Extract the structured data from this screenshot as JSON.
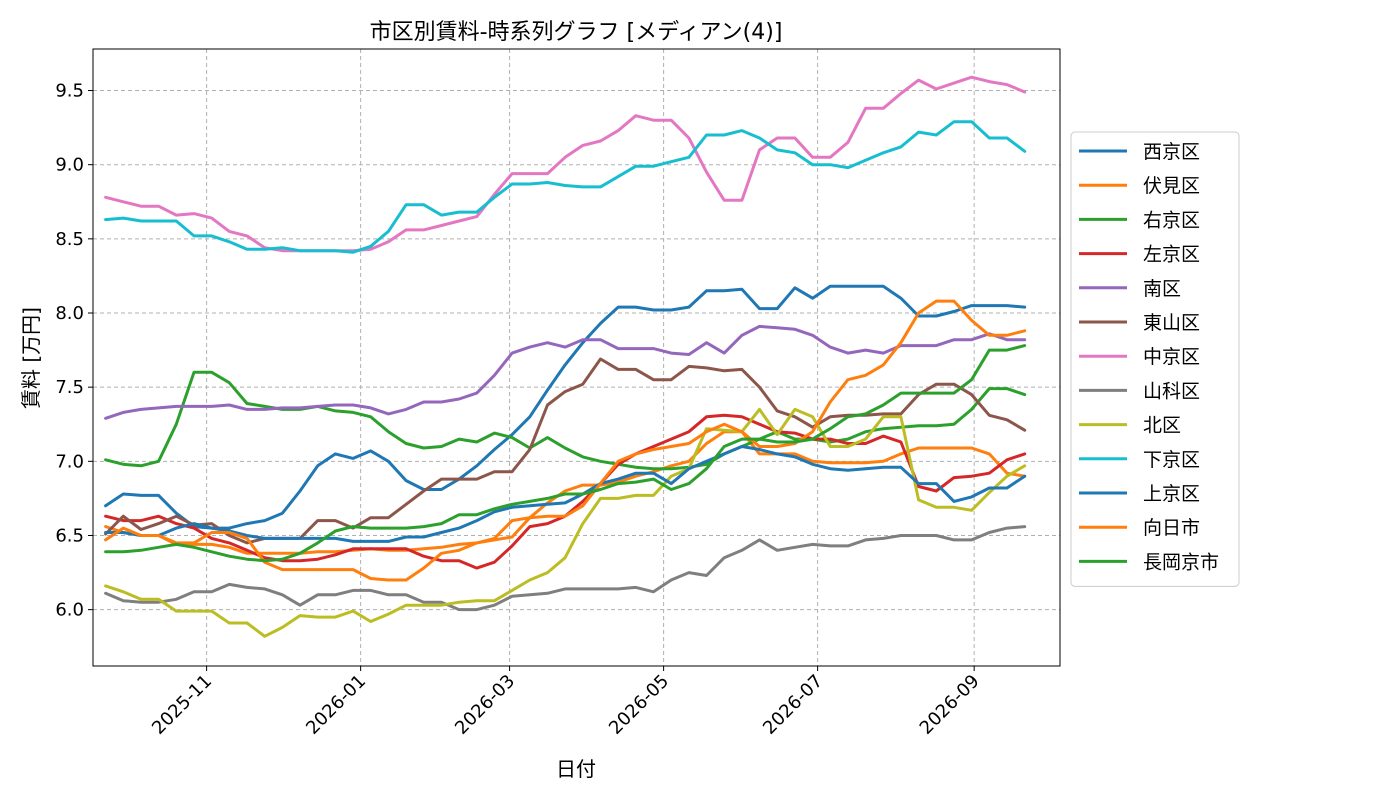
{
  "chart_data": {
    "type": "line",
    "title": "市区別賃料-時系列グラフ [メディアン(4)]",
    "xlabel": "日付",
    "ylabel": "賃料 [万円]",
    "ylim": [
      5.62,
      9.78
    ],
    "xlim": [
      "2025-09-17",
      "2026-10-05"
    ],
    "yticks": [
      6.0,
      6.5,
      7.0,
      7.5,
      8.0,
      8.5,
      9.0,
      9.5
    ],
    "ytick_labels": [
      "6.0",
      "6.5",
      "7.0",
      "7.5",
      "8.0",
      "8.5",
      "9.0",
      "9.5"
    ],
    "xticks": [
      "2025-11-01",
      "2026-01-01",
      "2026-03-01",
      "2026-05-01",
      "2026-07-01",
      "2026-09-01"
    ],
    "xtick_labels": [
      "2025-11",
      "2026-01",
      "2026-03",
      "2026-05",
      "2026-07",
      "2026-09"
    ],
    "grid": true,
    "legend": "right",
    "dates": [
      "2025-09-22",
      "2025-09-29",
      "2025-10-06",
      "2025-10-13",
      "2025-10-20",
      "2025-10-27",
      "2025-11-03",
      "2025-11-10",
      "2025-11-17",
      "2025-11-24",
      "2025-12-01",
      "2025-12-08",
      "2025-12-15",
      "2025-12-22",
      "2025-12-29",
      "2026-01-05",
      "2026-01-12",
      "2026-01-19",
      "2026-01-26",
      "2026-02-02",
      "2026-02-09",
      "2026-02-16",
      "2026-02-23",
      "2026-03-02",
      "2026-03-09",
      "2026-03-16",
      "2026-03-23",
      "2026-03-30",
      "2026-04-06",
      "2026-04-13",
      "2026-04-20",
      "2026-04-27",
      "2026-05-04",
      "2026-05-11",
      "2026-05-18",
      "2026-05-25",
      "2026-06-01",
      "2026-06-08",
      "2026-06-15",
      "2026-06-22",
      "2026-06-29",
      "2026-07-06",
      "2026-07-13",
      "2026-07-20",
      "2026-07-27",
      "2026-08-03",
      "2026-08-10",
      "2026-08-17",
      "2026-08-24",
      "2026-08-31",
      "2026-09-07",
      "2026-09-14",
      "2026-09-21"
    ],
    "series": [
      {
        "name": "西京区",
        "color": "#1f77b4",
        "values": [
          6.7,
          6.78,
          6.77,
          6.77,
          6.65,
          6.56,
          6.55,
          6.55,
          6.58,
          6.6,
          6.65,
          6.8,
          6.97,
          7.05,
          7.02,
          7.07,
          7.0,
          6.87,
          6.81,
          6.81,
          6.88,
          6.97,
          7.08,
          7.18,
          7.3,
          7.48,
          7.65,
          7.8,
          7.93,
          8.04,
          8.04,
          8.02,
          8.02,
          8.04,
          8.15,
          8.15,
          8.16,
          8.03,
          8.03,
          8.17,
          8.1,
          8.18,
          8.18,
          8.18,
          8.18,
          8.1,
          7.98,
          7.98,
          8.01,
          8.05,
          8.05,
          8.05,
          8.04
        ]
      },
      {
        "name": "伏見区",
        "color": "#ff7f0e",
        "values": [
          6.56,
          6.52,
          6.5,
          6.5,
          6.44,
          6.44,
          6.44,
          6.42,
          6.38,
          6.38,
          6.38,
          6.38,
          6.39,
          6.39,
          6.4,
          6.41,
          6.4,
          6.4,
          6.41,
          6.42,
          6.44,
          6.45,
          6.47,
          6.49,
          6.62,
          6.72,
          6.8,
          6.84,
          6.84,
          6.86,
          6.9,
          6.93,
          6.97,
          7.0,
          7.12,
          7.2,
          7.2,
          7.05,
          7.05,
          7.05,
          7.0,
          6.99,
          6.99,
          6.99,
          7.0,
          7.05,
          7.09,
          7.09,
          7.09,
          7.09,
          7.05,
          6.92,
          6.9
        ]
      },
      {
        "name": "右京区",
        "color": "#2ca02c",
        "values": [
          7.01,
          6.98,
          6.97,
          7.0,
          7.25,
          7.6,
          7.6,
          7.53,
          7.39,
          7.37,
          7.35,
          7.35,
          7.37,
          7.34,
          7.33,
          7.3,
          7.2,
          7.12,
          7.09,
          7.1,
          7.15,
          7.13,
          7.19,
          7.16,
          7.09,
          7.16,
          7.09,
          7.03,
          7.0,
          6.98,
          6.96,
          6.95,
          6.95,
          6.96,
          6.98,
          7.05,
          7.1,
          7.15,
          7.2,
          7.15,
          7.15,
          7.13,
          7.15,
          7.2,
          7.22,
          7.23,
          7.24,
          7.24,
          7.25,
          7.35,
          7.49,
          7.49,
          7.45
        ]
      },
      {
        "name": "左京区",
        "color": "#d62728",
        "values": [
          6.63,
          6.6,
          6.6,
          6.63,
          6.58,
          6.55,
          6.48,
          6.45,
          6.4,
          6.35,
          6.33,
          6.33,
          6.34,
          6.37,
          6.41,
          6.41,
          6.41,
          6.41,
          6.36,
          6.33,
          6.33,
          6.28,
          6.32,
          6.43,
          6.56,
          6.58,
          6.63,
          6.73,
          6.85,
          6.98,
          7.05,
          7.1,
          7.15,
          7.2,
          7.3,
          7.31,
          7.3,
          7.25,
          7.2,
          7.19,
          7.15,
          7.15,
          7.12,
          7.12,
          7.17,
          7.13,
          6.83,
          6.8,
          6.89,
          6.9,
          6.92,
          7.01,
          7.05
        ]
      },
      {
        "name": "南区",
        "color": "#9467bd",
        "values": [
          7.29,
          7.33,
          7.35,
          7.36,
          7.37,
          7.37,
          7.37,
          7.38,
          7.35,
          7.35,
          7.36,
          7.36,
          7.37,
          7.38,
          7.38,
          7.36,
          7.32,
          7.35,
          7.4,
          7.4,
          7.42,
          7.46,
          7.58,
          7.73,
          7.77,
          7.8,
          7.77,
          7.82,
          7.82,
          7.76,
          7.76,
          7.76,
          7.73,
          7.72,
          7.8,
          7.73,
          7.85,
          7.91,
          7.9,
          7.89,
          7.85,
          7.77,
          7.73,
          7.75,
          7.73,
          7.78,
          7.78,
          7.78,
          7.82,
          7.82,
          7.86,
          7.82,
          7.82
        ]
      },
      {
        "name": "東山区",
        "color": "#8c564b",
        "values": [
          6.51,
          6.63,
          6.54,
          6.58,
          6.63,
          6.57,
          6.58,
          6.5,
          6.45,
          6.48,
          6.48,
          6.48,
          6.6,
          6.6,
          6.55,
          6.62,
          6.62,
          6.71,
          6.8,
          6.88,
          6.88,
          6.88,
          6.93,
          6.93,
          7.08,
          7.38,
          7.47,
          7.52,
          7.69,
          7.62,
          7.62,
          7.55,
          7.55,
          7.64,
          7.63,
          7.61,
          7.62,
          7.5,
          7.34,
          7.3,
          7.23,
          7.3,
          7.31,
          7.31,
          7.32,
          7.32,
          7.45,
          7.52,
          7.52,
          7.45,
          7.31,
          7.28,
          7.21
        ]
      },
      {
        "name": "中京区",
        "color": "#e377c2",
        "values": [
          8.78,
          8.75,
          8.72,
          8.72,
          8.66,
          8.67,
          8.64,
          8.55,
          8.52,
          8.44,
          8.42,
          8.42,
          8.42,
          8.42,
          8.42,
          8.43,
          8.48,
          8.56,
          8.56,
          8.59,
          8.62,
          8.65,
          8.8,
          8.94,
          8.94,
          8.94,
          9.05,
          9.13,
          9.16,
          9.23,
          9.33,
          9.3,
          9.3,
          9.18,
          8.95,
          8.76,
          8.76,
          9.1,
          9.18,
          9.18,
          9.05,
          9.05,
          9.15,
          9.38,
          9.38,
          9.48,
          9.57,
          9.51,
          9.55,
          9.59,
          9.56,
          9.54,
          9.49
        ]
      },
      {
        "name": "山科区",
        "color": "#7f7f7f",
        "values": [
          6.11,
          6.06,
          6.05,
          6.05,
          6.07,
          6.12,
          6.12,
          6.17,
          6.15,
          6.14,
          6.1,
          6.03,
          6.1,
          6.1,
          6.13,
          6.13,
          6.1,
          6.1,
          6.05,
          6.05,
          6.0,
          6.0,
          6.03,
          6.09,
          6.1,
          6.11,
          6.14,
          6.14,
          6.14,
          6.14,
          6.15,
          6.12,
          6.2,
          6.25,
          6.23,
          6.35,
          6.4,
          6.47,
          6.4,
          6.42,
          6.44,
          6.43,
          6.43,
          6.47,
          6.48,
          6.5,
          6.5,
          6.5,
          6.47,
          6.47,
          6.52,
          6.55,
          6.56
        ]
      },
      {
        "name": "北区",
        "color": "#bcbd22",
        "values": [
          6.16,
          6.12,
          6.07,
          6.07,
          5.99,
          5.99,
          5.99,
          5.91,
          5.91,
          5.82,
          5.88,
          5.96,
          5.95,
          5.95,
          5.99,
          5.92,
          5.97,
          6.03,
          6.03,
          6.03,
          6.05,
          6.06,
          6.06,
          6.13,
          6.2,
          6.25,
          6.35,
          6.58,
          6.75,
          6.75,
          6.77,
          6.77,
          6.9,
          6.95,
          7.22,
          7.21,
          7.2,
          7.35,
          7.18,
          7.35,
          7.3,
          7.1,
          7.1,
          7.15,
          7.3,
          7.3,
          6.74,
          6.69,
          6.69,
          6.67,
          6.79,
          6.9,
          6.97
        ]
      },
      {
        "name": "下京区",
        "color": "#17becf",
        "values": [
          8.63,
          8.64,
          8.62,
          8.62,
          8.62,
          8.52,
          8.52,
          8.48,
          8.43,
          8.43,
          8.44,
          8.42,
          8.42,
          8.42,
          8.41,
          8.45,
          8.55,
          8.73,
          8.73,
          8.66,
          8.68,
          8.68,
          8.78,
          8.87,
          8.87,
          8.88,
          8.86,
          8.85,
          8.85,
          8.92,
          8.99,
          8.99,
          9.02,
          9.05,
          9.2,
          9.2,
          9.23,
          9.18,
          9.1,
          9.08,
          9.0,
          9.0,
          8.98,
          9.03,
          9.08,
          9.12,
          9.22,
          9.2,
          9.29,
          9.29,
          9.18,
          9.18,
          9.09
        ]
      },
      {
        "name": "上京区",
        "color": "#1f77b4",
        "values": [
          6.52,
          6.52,
          6.5,
          6.5,
          6.55,
          6.58,
          6.55,
          6.53,
          6.5,
          6.48,
          6.48,
          6.48,
          6.48,
          6.48,
          6.46,
          6.46,
          6.46,
          6.49,
          6.49,
          6.52,
          6.55,
          6.6,
          6.66,
          6.69,
          6.7,
          6.71,
          6.72,
          6.78,
          6.85,
          6.88,
          6.92,
          6.92,
          6.85,
          6.95,
          7.0,
          7.05,
          7.1,
          7.08,
          7.05,
          7.03,
          6.98,
          6.95,
          6.94,
          6.95,
          6.96,
          6.96,
          6.85,
          6.85,
          6.73,
          6.76,
          6.82,
          6.82,
          6.9
        ]
      },
      {
        "name": "向日市",
        "color": "#ff7f0e",
        "values": [
          6.47,
          6.55,
          6.5,
          6.5,
          6.45,
          6.45,
          6.52,
          6.52,
          6.48,
          6.32,
          6.27,
          6.27,
          6.27,
          6.27,
          6.27,
          6.21,
          6.2,
          6.2,
          6.28,
          6.38,
          6.4,
          6.45,
          6.48,
          6.6,
          6.62,
          6.63,
          6.63,
          6.7,
          6.85,
          7.0,
          7.05,
          7.08,
          7.1,
          7.12,
          7.2,
          7.25,
          7.2,
          7.1,
          7.1,
          7.12,
          7.2,
          7.4,
          7.55,
          7.58,
          7.65,
          7.8,
          8.0,
          8.08,
          8.08,
          7.95,
          7.85,
          7.85,
          7.88
        ]
      },
      {
        "name": "長岡京市",
        "color": "#2ca02c",
        "values": [
          6.39,
          6.39,
          6.4,
          6.42,
          6.44,
          6.42,
          6.39,
          6.36,
          6.34,
          6.33,
          6.34,
          6.38,
          6.45,
          6.53,
          6.56,
          6.55,
          6.55,
          6.55,
          6.56,
          6.58,
          6.64,
          6.64,
          6.68,
          6.71,
          6.73,
          6.75,
          6.78,
          6.78,
          6.81,
          6.85,
          6.86,
          6.88,
          6.81,
          6.85,
          6.95,
          7.1,
          7.15,
          7.15,
          7.13,
          7.13,
          7.15,
          7.22,
          7.3,
          7.32,
          7.38,
          7.46,
          7.46,
          7.46,
          7.46,
          7.55,
          7.75,
          7.75,
          7.78
        ]
      }
    ]
  }
}
